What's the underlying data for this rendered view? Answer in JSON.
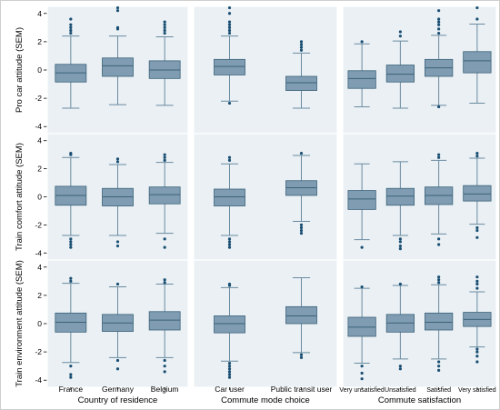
{
  "chart_data": {
    "type": "box",
    "ylim": [
      -4.5,
      4.5
    ],
    "yticks": [
      -4,
      -2,
      0,
      2,
      4
    ],
    "grid": false,
    "colors": {
      "box": "#7f9cb2",
      "box_edge": "#3b6279",
      "whisker": "#6a8aa0",
      "outlier": "#1a4f73",
      "panel_bg": "#eaf0f4"
    },
    "rows": [
      {
        "ylabel": "Pro car attitude (SEM)"
      },
      {
        "ylabel": "Train comfort attitude (SEM)"
      },
      {
        "ylabel": "Train environment attitude (SEM)"
      }
    ],
    "columns": [
      {
        "xtitle": "Country of residence",
        "categories": [
          "France",
          "Germany",
          "Belgium"
        ]
      },
      {
        "xtitle": "Commute mode choice",
        "categories": [
          "Car user",
          "Public transit user"
        ]
      },
      {
        "xtitle": "Commute satisfaction",
        "categories": [
          "Very unsatisfied",
          "Unsatisfied",
          "Satisfied",
          "Very satisfied"
        ]
      }
    ],
    "panels": [
      [
        {
          "boxes": [
            {
              "q1": -0.85,
              "median": -0.2,
              "q3": 0.4,
              "lw": -2.7,
              "uw": 2.4,
              "out": [
                2.6,
                2.8,
                3.0,
                3.2,
                3.6
              ]
            },
            {
              "q1": -0.45,
              "median": 0.3,
              "q3": 0.85,
              "lw": -2.45,
              "uw": 2.4,
              "out": [
                2.9,
                3.0,
                4.2,
                4.4
              ]
            },
            {
              "q1": -0.6,
              "median": 0.0,
              "q3": 0.65,
              "lw": -2.5,
              "uw": 2.35,
              "out": [
                2.6,
                2.8,
                3.0,
                3.2,
                3.4
              ]
            }
          ]
        },
        {
          "boxes": [
            {
              "q1": -0.35,
              "median": 0.25,
              "q3": 0.75,
              "lw": -2.2,
              "uw": 2.4,
              "out": [
                -2.35,
                2.6,
                2.8,
                3.0,
                3.2,
                3.4,
                4.0,
                4.4
              ]
            },
            {
              "q1": -1.45,
              "median": -0.9,
              "q3": -0.45,
              "lw": -2.7,
              "uw": 1.2,
              "out": [
                1.4,
                1.6,
                1.8,
                2.0
              ]
            }
          ]
        },
        {
          "boxes": [
            {
              "q1": -1.3,
              "median": -0.6,
              "q3": -0.05,
              "lw": -2.6,
              "uw": 1.85,
              "out": [
                2.0
              ]
            },
            {
              "q1": -0.85,
              "median": -0.3,
              "q3": 0.35,
              "lw": -2.7,
              "uw": 2.05,
              "out": [
                2.4,
                2.7
              ]
            },
            {
              "q1": -0.45,
              "median": 0.15,
              "q3": 0.75,
              "lw": -2.5,
              "uw": 2.45,
              "out": [
                -2.6,
                2.6,
                2.9,
                3.2,
                3.4,
                3.6,
                4.2
              ]
            },
            {
              "q1": -0.2,
              "median": 0.65,
              "q3": 1.3,
              "lw": -2.35,
              "uw": 3.25,
              "out": [
                3.6,
                4.4
              ]
            }
          ]
        }
      ],
      [
        {
          "boxes": [
            {
              "q1": -0.6,
              "median": 0.1,
              "q3": 0.75,
              "lw": -2.75,
              "uw": 2.8,
              "out": [
                -3.0,
                -3.2,
                -3.4,
                -3.6,
                3.0,
                3.1
              ]
            },
            {
              "q1": -0.65,
              "median": 0.0,
              "q3": 0.6,
              "lw": -2.75,
              "uw": 2.3,
              "out": [
                -3.2,
                -3.5,
                2.5,
                2.7
              ]
            },
            {
              "q1": -0.5,
              "median": 0.15,
              "q3": 0.7,
              "lw": -2.6,
              "uw": 2.45,
              "out": [
                -3.0,
                -3.6,
                2.6,
                2.8,
                3.0
              ]
            }
          ]
        },
        {
          "boxes": [
            {
              "q1": -0.65,
              "median": 0.0,
              "q3": 0.55,
              "lw": -2.75,
              "uw": 2.35,
              "out": [
                -3.0,
                -3.2,
                -3.4,
                -3.6,
                2.6,
                2.8
              ]
            },
            {
              "q1": 0.1,
              "median": 0.65,
              "q3": 1.15,
              "lw": -1.75,
              "uw": 2.95,
              "out": [
                -2.0,
                -2.2,
                -2.4,
                -2.6,
                3.1
              ]
            }
          ]
        },
        {
          "boxes": [
            {
              "q1": -0.9,
              "median": -0.15,
              "q3": 0.45,
              "lw": -3.05,
              "uw": 2.35,
              "out": [
                -3.6
              ]
            },
            {
              "q1": -0.6,
              "median": 0.05,
              "q3": 0.6,
              "lw": -2.75,
              "uw": 2.5,
              "out": [
                -3.0,
                -3.2,
                -3.5,
                -3.7
              ]
            },
            {
              "q1": -0.55,
              "median": 0.1,
              "q3": 0.7,
              "lw": -2.65,
              "uw": 2.6,
              "out": [
                -3.0,
                -3.4,
                2.8,
                3.0
              ]
            },
            {
              "q1": -0.3,
              "median": 0.2,
              "q3": 0.8,
              "lw": -1.95,
              "uw": 2.75,
              "out": [
                -2.2,
                -2.4,
                -2.9,
                2.9,
                3.1
              ]
            }
          ]
        }
      ],
      [
        {
          "boxes": [
            {
              "q1": -0.6,
              "median": 0.1,
              "q3": 0.75,
              "lw": -2.75,
              "uw": 2.85,
              "out": [
                -3.0,
                -3.6,
                -3.8,
                3.0,
                3.2
              ]
            },
            {
              "q1": -0.55,
              "median": 0.05,
              "q3": 0.65,
              "lw": -2.4,
              "uw": 2.6,
              "out": [
                -2.6,
                -3.2,
                2.8
              ]
            },
            {
              "q1": -0.45,
              "median": 0.25,
              "q3": 0.85,
              "lw": -2.4,
              "uw": 2.8,
              "out": [
                -2.6,
                -3.0,
                -3.4,
                2.9,
                3.1
              ]
            }
          ]
        },
        {
          "boxes": [
            {
              "q1": -0.65,
              "median": 0.0,
              "q3": 0.55,
              "lw": -2.65,
              "uw": 2.55,
              "out": [
                -2.8,
                -3.0,
                -3.2,
                -3.4,
                -3.6,
                -3.8,
                2.7,
                2.8
              ]
            },
            {
              "q1": 0.0,
              "median": 0.55,
              "q3": 1.2,
              "lw": -2.05,
              "uw": 3.25,
              "out": [
                -2.2,
                -2.4
              ]
            }
          ]
        },
        {
          "boxes": [
            {
              "q1": -0.9,
              "median": -0.25,
              "q3": 0.45,
              "lw": -2.8,
              "uw": 2.5,
              "out": [
                -3.0,
                -3.5,
                -3.9,
                2.6
              ]
            },
            {
              "q1": -0.6,
              "median": 0.05,
              "q3": 0.65,
              "lw": -2.5,
              "uw": 2.7,
              "out": [
                -3.0,
                -3.2,
                2.8
              ]
            },
            {
              "q1": -0.45,
              "median": 0.1,
              "q3": 0.75,
              "lw": -2.5,
              "uw": 2.75,
              "out": [
                -2.7,
                -3.0,
                -3.3,
                2.9,
                3.1,
                3.3
              ]
            },
            {
              "q1": -0.2,
              "median": 0.3,
              "q3": 0.8,
              "lw": -1.65,
              "uw": 2.25,
              "out": [
                -1.8,
                -2.0,
                -2.3,
                -2.7,
                2.5,
                2.8,
                3.0,
                3.3
              ]
            }
          ]
        }
      ]
    ]
  }
}
